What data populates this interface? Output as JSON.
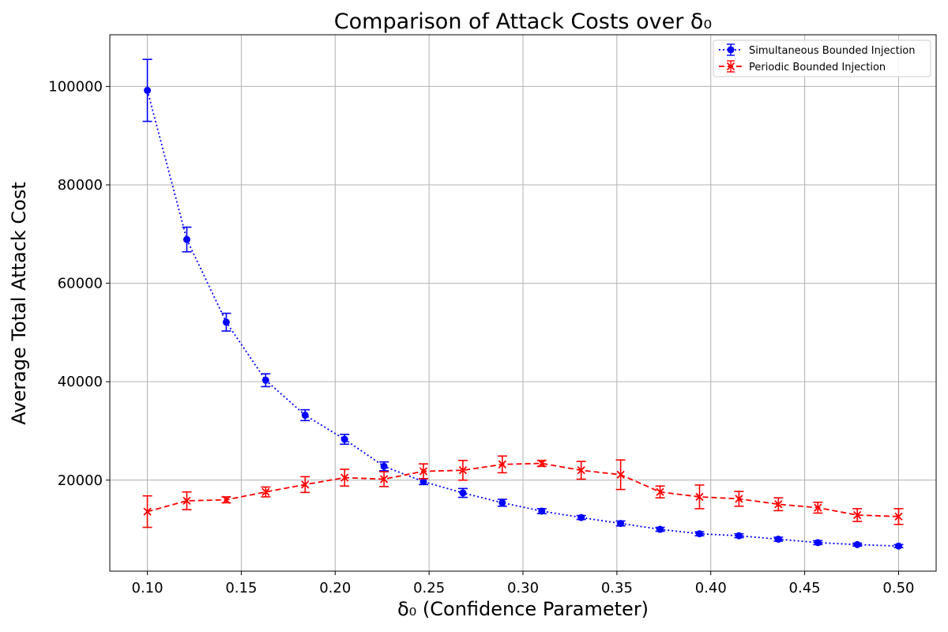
{
  "chart_data": {
    "type": "line",
    "title": "Comparison of Attack Costs over δ₀",
    "xlabel": "δ₀ (Confidence Parameter)",
    "ylabel": "Average Total Attack Cost",
    "xlim": [
      0.08,
      0.52
    ],
    "ylim": [
      1500,
      110500
    ],
    "xticks": [
      "0.10",
      "0.15",
      "0.20",
      "0.25",
      "0.30",
      "0.35",
      "0.40",
      "0.45",
      "0.50"
    ],
    "yticks": [
      "20000",
      "40000",
      "60000",
      "80000",
      "100000"
    ],
    "grid": true,
    "legend_position": "top-right",
    "x": [
      0.1,
      0.121,
      0.142,
      0.163,
      0.184,
      0.205,
      0.226,
      0.247,
      0.268,
      0.289,
      0.31,
      0.331,
      0.352,
      0.373,
      0.394,
      0.415,
      0.436,
      0.457,
      0.478,
      0.5
    ],
    "series": [
      {
        "name": "Simultaneous Bounded Injection",
        "color": "#0000ff",
        "line_style": "dotted",
        "marker": "circle",
        "values": [
          99200,
          68900,
          52100,
          40300,
          33200,
          28300,
          22800,
          19700,
          17400,
          15400,
          13700,
          12400,
          11200,
          10000,
          9100,
          8700,
          8000,
          7300,
          6900,
          6600
        ],
        "errors": [
          6300,
          2500,
          1800,
          1300,
          1100,
          1000,
          900,
          600,
          900,
          700,
          500,
          400,
          500,
          400,
          400,
          400,
          400,
          400,
          300,
          300
        ]
      },
      {
        "name": "Periodic Bounded Injection",
        "color": "#ff0000",
        "line_style": "dashed",
        "marker": "x",
        "values": [
          13600,
          15800,
          16000,
          17600,
          19100,
          20500,
          20200,
          21800,
          22000,
          23200,
          23400,
          22000,
          21100,
          17600,
          16600,
          16200,
          15100,
          14400,
          12900,
          12600
        ],
        "errors": [
          3200,
          1800,
          600,
          1000,
          1600,
          1700,
          1500,
          1500,
          2000,
          1700,
          600,
          1800,
          3000,
          1200,
          2400,
          1500,
          1300,
          1100,
          1300,
          1600
        ]
      }
    ]
  }
}
